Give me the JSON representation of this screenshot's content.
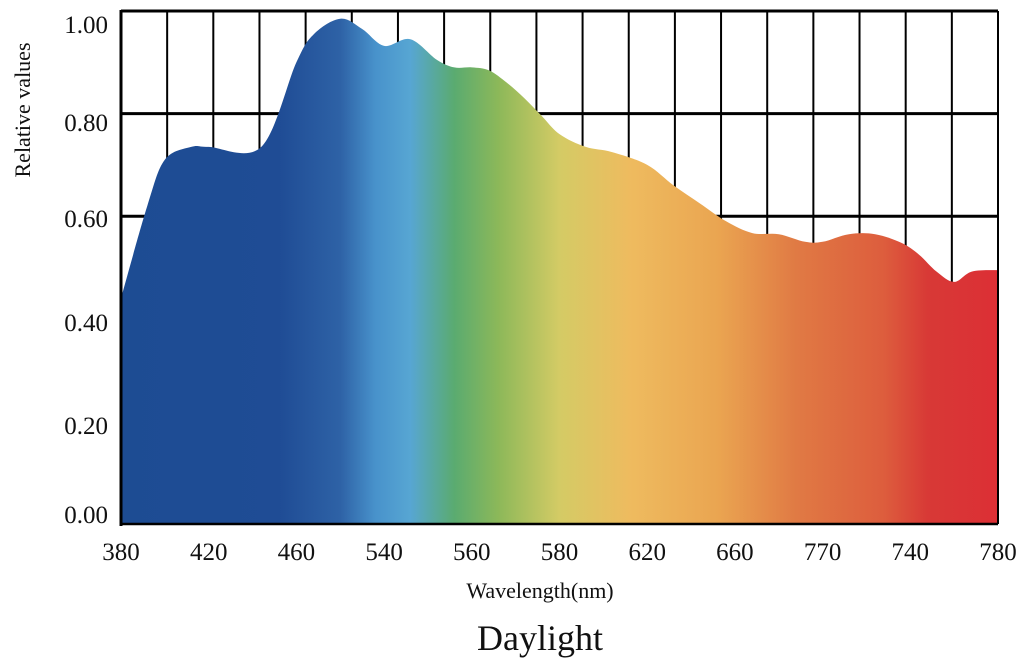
{
  "chart_data": {
    "type": "area",
    "title": "Daylight",
    "xlabel": "Wavelength(nm)",
    "ylabel": "Relative values",
    "x_tick_labels": [
      "380",
      "420",
      "460",
      "540",
      "560",
      "580",
      "620",
      "660",
      "770",
      "740",
      "780"
    ],
    "y_tick_labels": [
      "0.00",
      "0.20",
      "0.40",
      "0.60",
      "0.80",
      "1.00"
    ],
    "ylim": [
      0,
      1
    ],
    "grid": true,
    "x_index_range": [
      0,
      10
    ],
    "series": [
      {
        "x": [
          0,
          0.3,
          0.5,
          0.8,
          1.0,
          1.6,
          2.0,
          2.2,
          2.5,
          2.75,
          3.0,
          3.3,
          3.6,
          3.8,
          4.0,
          4.2,
          4.4,
          4.6,
          4.8,
          5.0,
          5.3,
          5.6,
          6.0,
          6.3,
          6.6,
          6.9,
          7.2,
          7.5,
          7.8,
          8.0,
          8.3,
          8.6,
          8.9,
          9.1,
          9.3,
          9.5,
          9.7,
          10.0
        ],
        "y": [
          0.44,
          0.62,
          0.71,
          0.735,
          0.735,
          0.735,
          0.9,
          0.955,
          0.985,
          0.965,
          0.932,
          0.945,
          0.905,
          0.89,
          0.89,
          0.884,
          0.86,
          0.83,
          0.795,
          0.76,
          0.735,
          0.725,
          0.7,
          0.66,
          0.625,
          0.59,
          0.567,
          0.565,
          0.55,
          0.55,
          0.565,
          0.565,
          0.548,
          0.525,
          0.492,
          0.472,
          0.492,
          0.495
        ]
      }
    ],
    "colors": {
      "spectrum_stops": [
        {
          "offset": 0.0,
          "color": "#1d4c93"
        },
        {
          "offset": 0.18,
          "color": "#1f4c95"
        },
        {
          "offset": 0.25,
          "color": "#2e62a6"
        },
        {
          "offset": 0.29,
          "color": "#4892cb"
        },
        {
          "offset": 0.33,
          "color": "#57a6d3"
        },
        {
          "offset": 0.38,
          "color": "#5aab70"
        },
        {
          "offset": 0.43,
          "color": "#8cb859"
        },
        {
          "offset": 0.5,
          "color": "#d4cb65"
        },
        {
          "offset": 0.58,
          "color": "#eebb5f"
        },
        {
          "offset": 0.68,
          "color": "#eaa551"
        },
        {
          "offset": 0.77,
          "color": "#e07a44"
        },
        {
          "offset": 0.87,
          "color": "#dd5d3d"
        },
        {
          "offset": 0.92,
          "color": "#d83936"
        },
        {
          "offset": 1.0,
          "color": "#dc2f35"
        }
      ],
      "grid": "#000000"
    }
  }
}
